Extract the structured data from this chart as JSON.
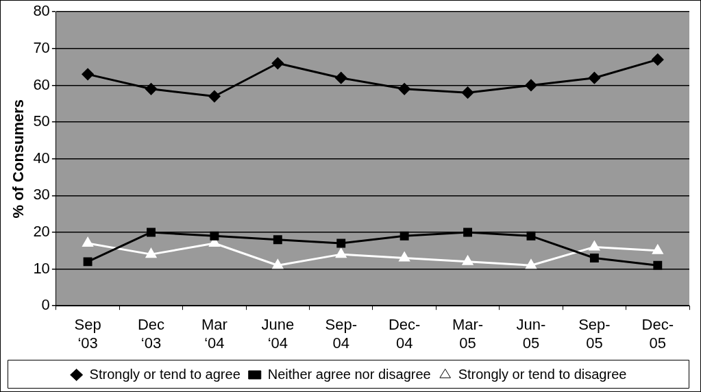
{
  "chart_data": {
    "type": "line",
    "ylabel": "% of Consumers",
    "categories": [
      "Sep ‘03",
      "Dec ‘03",
      "Mar ‘04",
      "June ‘04",
      "Sep-04",
      "Dec-04",
      "Mar-05",
      "Jun-05",
      "Sep-05",
      "Dec-05"
    ],
    "series": [
      {
        "name": "Strongly or tend to agree",
        "color": "#000000",
        "marker": "diamond",
        "values": [
          63,
          59,
          57,
          66,
          62,
          59,
          58,
          60,
          62,
          67
        ]
      },
      {
        "name": "Neither agree nor disagree",
        "color": "#000000",
        "marker": "square",
        "values": [
          12,
          20,
          19,
          18,
          17,
          19,
          20,
          19,
          13,
          11
        ]
      },
      {
        "name": "Strongly or tend to disagree",
        "color": "#ffffff",
        "marker": "triangle",
        "values": [
          17,
          14,
          17,
          11,
          14,
          13,
          12,
          11,
          16,
          15
        ]
      }
    ],
    "ylim": [
      0,
      80
    ],
    "yticks": [
      0,
      10,
      20,
      30,
      40,
      50,
      60,
      70,
      80
    ],
    "grid": "y",
    "legend": "bottom",
    "line_style": "solid"
  }
}
